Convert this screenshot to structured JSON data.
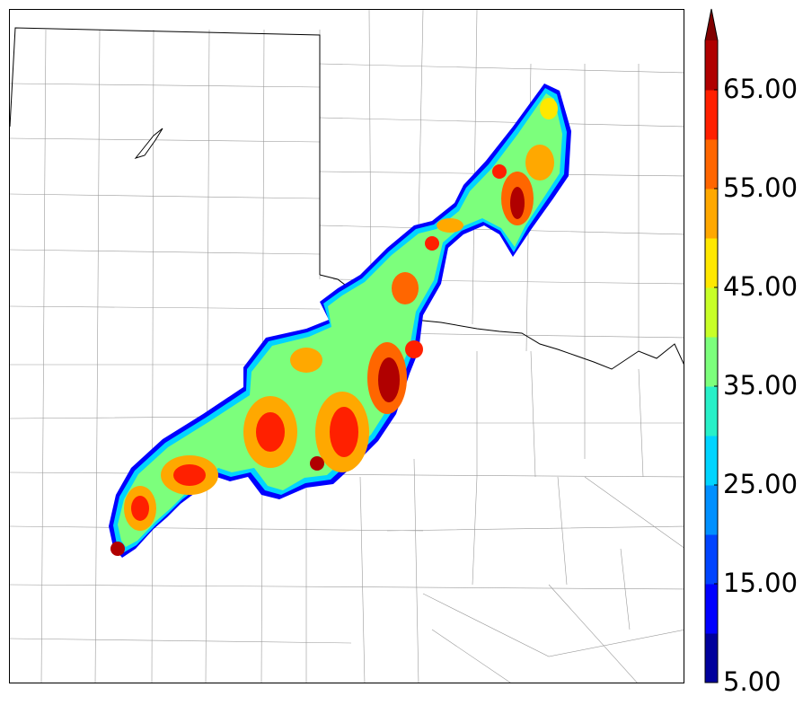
{
  "map": {
    "type": "radar reflectivity / composite field map",
    "background": "#ffffff",
    "boundary_color": "#000000",
    "county_line_color": "#9a9a9a"
  },
  "colorbar": {
    "extend": "max",
    "levels": [
      5,
      10,
      15,
      20,
      25,
      30,
      35,
      40,
      45,
      50,
      55,
      60,
      65,
      70
    ],
    "colors": [
      "#00009c",
      "#0000ff",
      "#0044ff",
      "#0090ff",
      "#00d4ff",
      "#28f0c8",
      "#7cff7c",
      "#c8ff28",
      "#ffe800",
      "#ffa800",
      "#ff6600",
      "#ff2000",
      "#b00000"
    ],
    "extend_color": "#800000",
    "labels": [
      {
        "id": "label-5",
        "text": "5.00"
      },
      {
        "id": "label-15",
        "text": "15.00"
      },
      {
        "id": "label-25",
        "text": "25.00"
      },
      {
        "id": "label-35",
        "text": "35.00"
      },
      {
        "id": "label-45",
        "text": "45.00"
      },
      {
        "id": "label-55",
        "text": "55.00"
      },
      {
        "id": "label-65",
        "text": "65.00"
      }
    ]
  }
}
